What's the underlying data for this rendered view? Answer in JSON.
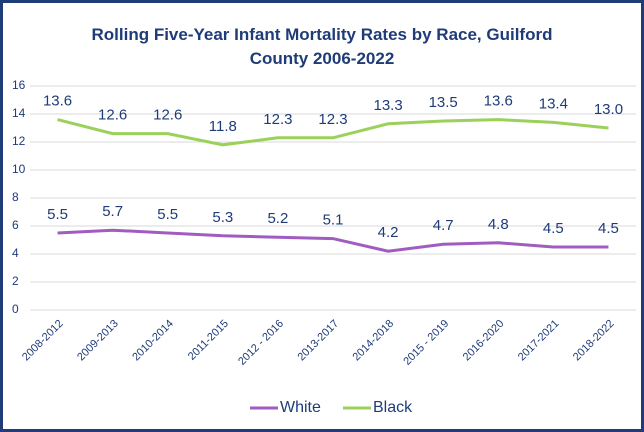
{
  "chart_data": {
    "type": "line",
    "title": "Rolling Five-Year Infant Mortality Rates by Race, Guilford County 2006-2022",
    "categories": [
      "2008-2012",
      "2009-2013",
      "2010-2014",
      "2011-2015",
      "2012 - 2016",
      "2013-2017",
      "2014-2018",
      "2015 - 2019",
      "2016-2020",
      "2017-2021",
      "2018-2022"
    ],
    "series": [
      {
        "name": "White",
        "color": "#a05cc0",
        "values": [
          5.5,
          5.7,
          5.5,
          5.3,
          5.2,
          5.1,
          4.2,
          4.7,
          4.8,
          4.5,
          4.5
        ]
      },
      {
        "name": "Black",
        "color": "#9bd05a",
        "values": [
          13.6,
          12.6,
          12.6,
          11.8,
          12.3,
          12.3,
          13.3,
          13.5,
          13.6,
          13.4,
          13
        ],
        "value_labels": [
          "13.6",
          "12.6",
          "12.6",
          "11.8",
          "12.3",
          "12.3",
          "13.3",
          "13.5",
          "13.6",
          "13.4",
          "13.0"
        ]
      }
    ],
    "ylim": [
      0,
      16
    ],
    "yticks": [
      0,
      2,
      4,
      6,
      8,
      10,
      12,
      14,
      16
    ],
    "grid": true,
    "legend": "bottom"
  }
}
